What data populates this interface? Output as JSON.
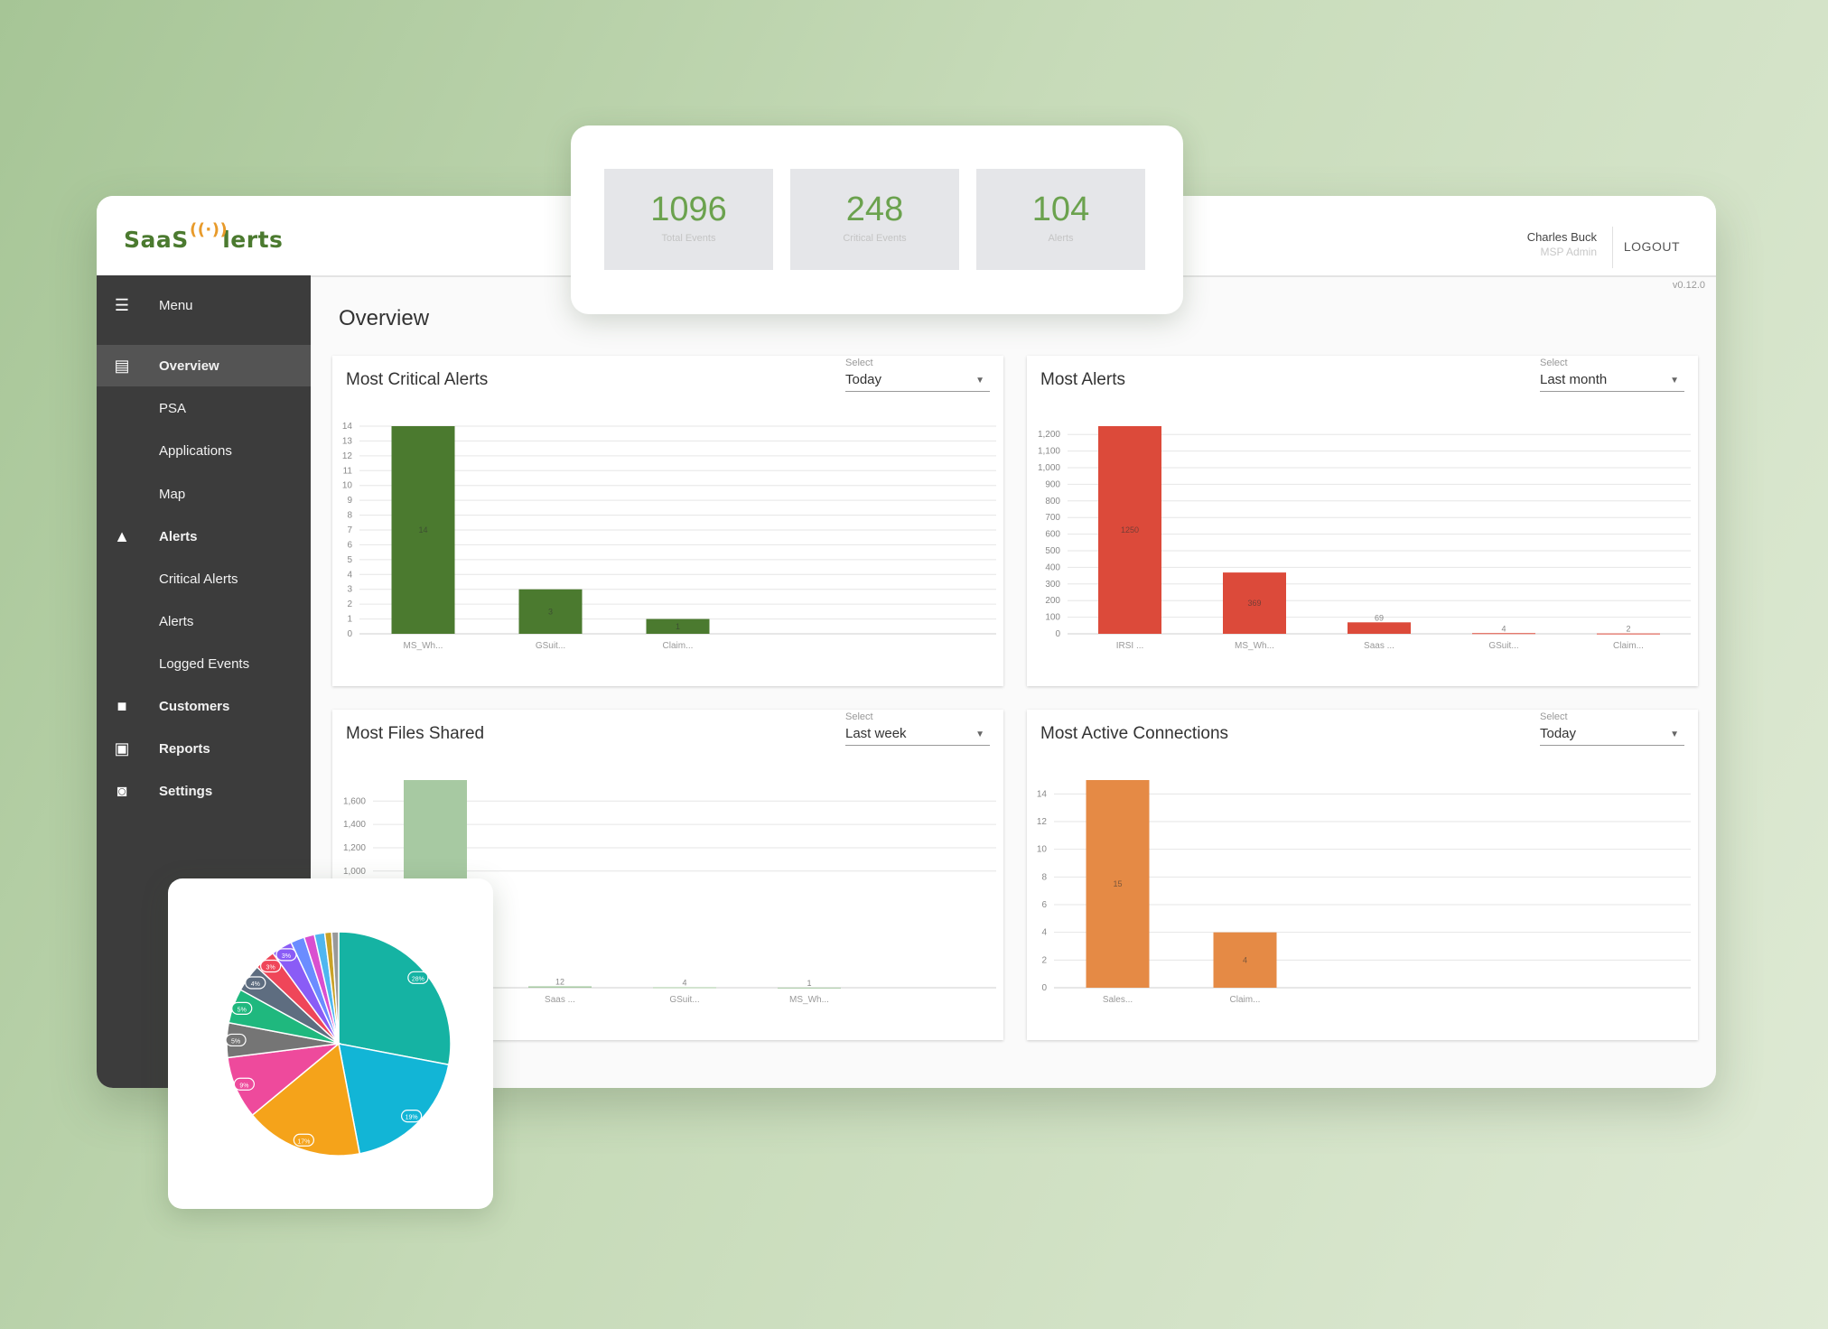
{
  "topbar": {
    "logo": "SaaS Alerts",
    "user_name": "Charles Buck",
    "user_role": "MSP Admin",
    "logout": "LOGOUT",
    "version": "v0.12.0"
  },
  "sidebar": {
    "items": [
      {
        "icon": "menu-icon",
        "glyph": "☰",
        "label": "Menu",
        "bold": false
      },
      {
        "icon": "chart-icon",
        "glyph": "▤",
        "label": "Overview",
        "bold": true
      },
      {
        "icon": "",
        "glyph": "",
        "label": "PSA",
        "bold": false
      },
      {
        "icon": "",
        "glyph": "",
        "label": "Applications",
        "bold": false
      },
      {
        "icon": "",
        "glyph": "",
        "label": "Map",
        "bold": false
      },
      {
        "icon": "warning-icon",
        "glyph": "▲",
        "label": "Alerts",
        "bold": true
      },
      {
        "icon": "",
        "glyph": "",
        "label": "Critical Alerts",
        "bold": false
      },
      {
        "icon": "",
        "glyph": "",
        "label": "Alerts",
        "bold": false
      },
      {
        "icon": "",
        "glyph": "",
        "label": "Logged Events",
        "bold": false
      },
      {
        "icon": "briefcase-icon",
        "glyph": "■",
        "label": "Customers",
        "bold": true
      },
      {
        "icon": "reports-icon",
        "glyph": "▣",
        "label": "Reports",
        "bold": true
      },
      {
        "icon": "settings-icon",
        "glyph": "◙",
        "label": "Settings",
        "bold": true
      }
    ]
  },
  "main": {
    "title": "Overview"
  },
  "stats": [
    {
      "value": "1096",
      "caption": "Total Events"
    },
    {
      "value": "248",
      "caption": "Critical Events"
    },
    {
      "value": "104",
      "caption": "Alerts"
    }
  ],
  "cards": [
    {
      "title": "Most Critical Alerts",
      "select_label": "Select",
      "select_value": "Today"
    },
    {
      "title": "Most Alerts",
      "select_label": "Select",
      "select_value": "Last month"
    },
    {
      "title": "Most Files Shared",
      "select_label": "Select",
      "select_value": "Last week"
    },
    {
      "title": "Most Active Connections",
      "select_label": "Select",
      "select_value": "Today"
    }
  ],
  "chart_data": [
    {
      "type": "bar",
      "title": "Most Critical Alerts",
      "color": "#4b7a2f",
      "categories": [
        "MS_Wh...",
        "GSuit...",
        "Claim...",
        "",
        ""
      ],
      "values": [
        14,
        3,
        1,
        null,
        null
      ],
      "value_labels": [
        "14",
        "3",
        "1",
        "",
        ""
      ],
      "ylim": [
        0,
        14
      ],
      "yticks": [
        0,
        1,
        2,
        3,
        4,
        5,
        6,
        7,
        8,
        9,
        10,
        11,
        12,
        13,
        14
      ],
      "ytick_labels": [
        "0",
        "1",
        "2",
        "3",
        "4",
        "5",
        "6",
        "7",
        "8",
        "9",
        "10",
        "11",
        "12",
        "13",
        "14"
      ]
    },
    {
      "type": "bar",
      "title": "Most Alerts",
      "color": "#dc4a3a",
      "categories": [
        "IRSI ...",
        "MS_Wh...",
        "Saas ...",
        "GSuit...",
        "Claim..."
      ],
      "values": [
        1250,
        369,
        69,
        4,
        2
      ],
      "value_labels": [
        "1250",
        "369",
        "69",
        "4",
        "2"
      ],
      "ylim": [
        0,
        1250
      ],
      "yticks": [
        0,
        100,
        200,
        300,
        400,
        500,
        600,
        700,
        800,
        900,
        1000,
        1100,
        1200
      ],
      "ytick_labels": [
        "0",
        "100",
        "200",
        "300",
        "400",
        "500",
        "600",
        "700",
        "800",
        "900",
        "1,000",
        "1,100",
        "1,200"
      ]
    },
    {
      "type": "bar",
      "title": "Most Files Shared",
      "color": "#a7c9a2",
      "categories": [
        "",
        "Saas ...",
        "GSuit...",
        "MS_Wh...",
        ""
      ],
      "values": [
        1780,
        12,
        4,
        1,
        null
      ],
      "value_labels": [
        "1780",
        "12",
        "4",
        "1",
        ""
      ],
      "ylim": [
        0,
        1780
      ],
      "yticks": [
        1000,
        1200,
        1400,
        1600
      ],
      "ytick_labels": [
        "1,000",
        "1,200",
        "1,400",
        "1,600"
      ]
    },
    {
      "type": "bar",
      "title": "Most Active Connections",
      "color": "#e58a45",
      "categories": [
        "Sales...",
        "Claim...",
        "",
        "",
        ""
      ],
      "values": [
        15,
        4,
        null,
        null,
        null
      ],
      "value_labels": [
        "15",
        "4",
        "",
        "",
        ""
      ],
      "ylim": [
        0,
        15
      ],
      "yticks": [
        0,
        2,
        4,
        6,
        8,
        10,
        12,
        14
      ],
      "ytick_labels": [
        "0",
        "2",
        "4",
        "6",
        "8",
        "10",
        "12",
        "14"
      ]
    },
    {
      "type": "pie",
      "slices": [
        {
          "value": 28,
          "label": "28%",
          "color": "#15b3a3"
        },
        {
          "value": 19,
          "label": "19%",
          "color": "#12b5d6"
        },
        {
          "value": 17,
          "label": "17%",
          "color": "#f5a31a"
        },
        {
          "value": 9,
          "label": "9%",
          "color": "#ee4a9c"
        },
        {
          "value": 5,
          "label": "5%",
          "color": "#757575"
        },
        {
          "value": 5,
          "label": "5%",
          "color": "#1fb87e"
        },
        {
          "value": 4,
          "label": "4%",
          "color": "#5e6d80"
        },
        {
          "value": 3,
          "label": "3%",
          "color": "#ef4659"
        },
        {
          "value": 3,
          "label": "3%",
          "color": "#8a5cf6"
        },
        {
          "value": 2,
          "label": "",
          "color": "#6b8cff"
        },
        {
          "value": 1.5,
          "label": "",
          "color": "#d94fd0"
        },
        {
          "value": 1.5,
          "label": "",
          "color": "#4fb6f0"
        },
        {
          "value": 1,
          "label": "",
          "color": "#c9a227"
        },
        {
          "value": 1,
          "label": "",
          "color": "#999999"
        }
      ]
    }
  ]
}
